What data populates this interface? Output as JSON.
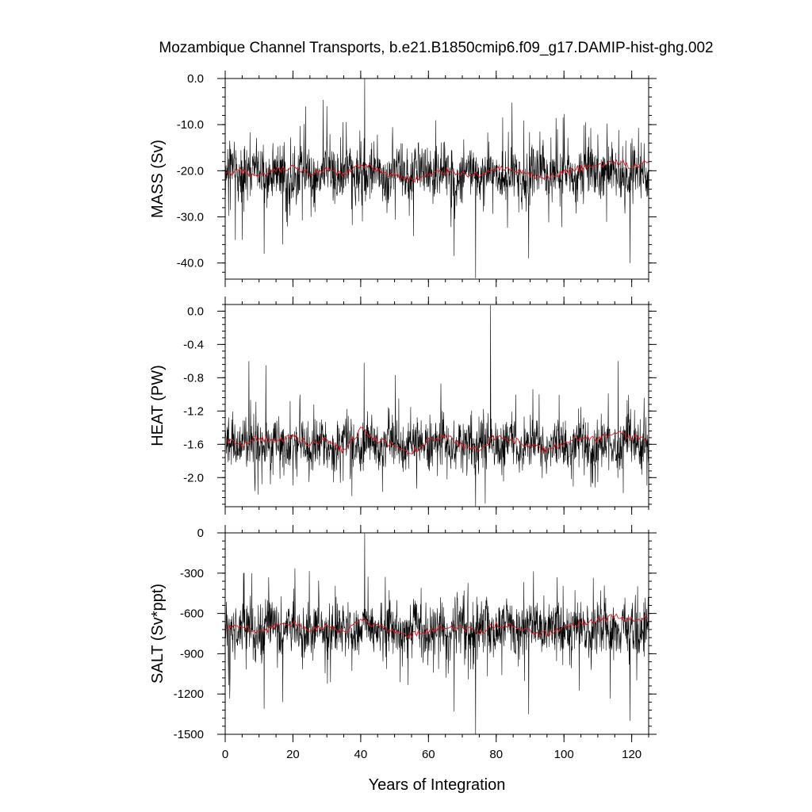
{
  "title": "Mozambique Channel Transports, b.e21.B1850cmip6.f09_g17.DAMIP-hist-ghg.002",
  "xlabel": "Years of Integration",
  "colors": {
    "raw_series": "#000000",
    "smoothed_series": "#e8141c"
  },
  "chart_data": [
    {
      "type": "line",
      "ylabel": "MASS (Sv)",
      "xlim": [
        0,
        125
      ],
      "ylim": [
        -43.5,
        0
      ],
      "x_ticks": [
        0,
        20,
        40,
        60,
        80,
        100,
        120
      ],
      "x_tick_labels": [
        "0",
        "20",
        "40",
        "60",
        "80",
        "100",
        "120"
      ],
      "y_ticks": [
        0,
        -10,
        -20,
        -30,
        -40
      ],
      "y_tick_labels": [
        "0.0",
        "-10.0",
        "-20.0",
        "-30.0",
        "-40.0"
      ],
      "grid": false,
      "series": [
        {
          "role": "monthly",
          "mean": -20.5,
          "amplitude": 5.2,
          "spikes": [
            [
              41.2,
              0.0
            ],
            [
              73.9,
              -43.3
            ],
            [
              11.5,
              -38
            ],
            [
              17,
              -36
            ],
            [
              67.6,
              -38.5
            ],
            [
              89.6,
              -39
            ],
            [
              119.5,
              -40
            ],
            [
              3,
              -35
            ],
            [
              5,
              -35
            ]
          ]
        },
        {
          "role": "smoothed",
          "mean": -20.3,
          "amplitude": 1.9,
          "x": [
            0,
            5,
            10,
            15,
            20,
            25,
            30,
            35,
            40,
            45,
            50,
            55,
            60,
            65,
            70,
            75,
            80,
            85,
            90,
            95,
            100,
            105,
            110,
            115,
            120,
            125
          ],
          "y": [
            -21,
            -20,
            -21.5,
            -20,
            -19.5,
            -20.5,
            -20,
            -21,
            -18.5,
            -20,
            -21,
            -22,
            -21,
            -20,
            -20.5,
            -21,
            -19.5,
            -20,
            -21,
            -21.5,
            -20.5,
            -19.5,
            -19,
            -18,
            -19,
            -18
          ]
        }
      ]
    },
    {
      "type": "line",
      "ylabel": "HEAT (PW)",
      "xlim": [
        0,
        125
      ],
      "ylim": [
        -2.35,
        0.08
      ],
      "x_ticks": [
        0,
        20,
        40,
        60,
        80,
        100,
        120
      ],
      "x_tick_labels": [
        "0",
        "20",
        "40",
        "60",
        "80",
        "100",
        "120"
      ],
      "y_ticks": [
        0,
        -0.4,
        -0.8,
        -1.2,
        -1.6,
        -2.0
      ],
      "y_tick_labels": [
        "0.0",
        "-0.4",
        "-0.8",
        "-1.2",
        "-1.6",
        "-2.0"
      ],
      "grid": false,
      "series": [
        {
          "role": "monthly",
          "mean": -1.6,
          "amplitude": 0.26,
          "spikes": [
            [
              78.3,
              0.07
            ],
            [
              73.9,
              -2.35
            ],
            [
              7,
              -0.6
            ],
            [
              12,
              -0.65
            ],
            [
              41,
              -0.62
            ],
            [
              116,
              -0.6
            ]
          ]
        },
        {
          "role": "smoothed",
          "mean": -1.58,
          "amplitude": 0.1,
          "x": [
            0,
            5,
            10,
            15,
            20,
            25,
            30,
            35,
            40,
            45,
            50,
            55,
            60,
            65,
            70,
            75,
            80,
            85,
            90,
            95,
            100,
            105,
            110,
            115,
            120,
            125
          ],
          "y": [
            -1.55,
            -1.6,
            -1.52,
            -1.58,
            -1.5,
            -1.6,
            -1.55,
            -1.68,
            -1.42,
            -1.55,
            -1.62,
            -1.7,
            -1.55,
            -1.5,
            -1.62,
            -1.65,
            -1.5,
            -1.55,
            -1.62,
            -1.68,
            -1.58,
            -1.5,
            -1.55,
            -1.45,
            -1.52,
            -1.55
          ]
        }
      ]
    },
    {
      "type": "line",
      "ylabel": "SALT (Sv*ppt)",
      "xlim": [
        0,
        125
      ],
      "ylim": [
        -1500,
        0
      ],
      "x_ticks": [
        0,
        20,
        40,
        60,
        80,
        100,
        120
      ],
      "x_tick_labels": [
        "0",
        "20",
        "40",
        "60",
        "80",
        "100",
        "120"
      ],
      "y_ticks": [
        0,
        -300,
        -600,
        -900,
        -1200,
        -1500
      ],
      "y_tick_labels": [
        "0",
        "-300",
        "-600",
        "-900",
        "-1200",
        "-1500"
      ],
      "grid": false,
      "series": [
        {
          "role": "monthly",
          "mean": -710,
          "amplitude": 180,
          "spikes": [
            [
              41.2,
              -5
            ],
            [
              73.9,
              -1500
            ],
            [
              11.5,
              -1310
            ],
            [
              17,
              -1260
            ],
            [
              67.6,
              -1330
            ],
            [
              89.6,
              -1350
            ],
            [
              119.5,
              -1400
            ]
          ]
        },
        {
          "role": "smoothed",
          "mean": -705,
          "amplitude": 60,
          "x": [
            0,
            5,
            10,
            15,
            20,
            25,
            30,
            35,
            40,
            45,
            50,
            55,
            60,
            65,
            70,
            75,
            80,
            85,
            90,
            95,
            100,
            105,
            110,
            115,
            120,
            125
          ],
          "y": [
            -720,
            -690,
            -740,
            -690,
            -670,
            -720,
            -700,
            -740,
            -640,
            -700,
            -730,
            -760,
            -730,
            -700,
            -710,
            -740,
            -680,
            -700,
            -730,
            -750,
            -710,
            -670,
            -660,
            -620,
            -650,
            -630
          ]
        }
      ]
    }
  ]
}
